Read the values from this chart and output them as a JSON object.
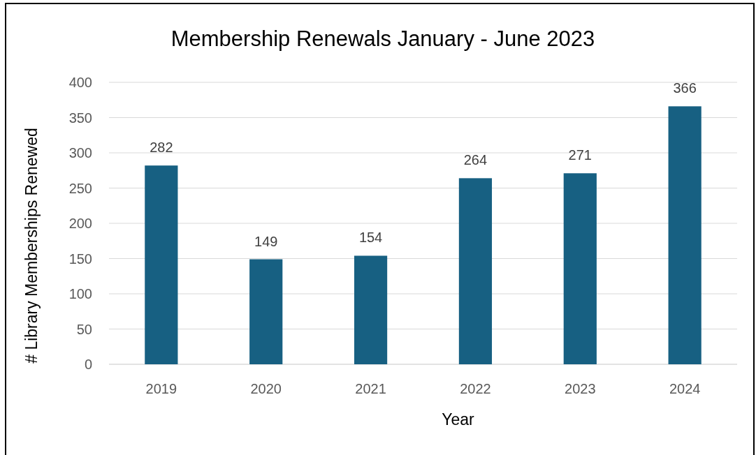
{
  "chart_data": {
    "type": "bar",
    "title": "Membership Renewals January - June 2023",
    "xlabel": "Year",
    "ylabel": "# Library Memberships Renewed",
    "categories": [
      "2019",
      "2020",
      "2021",
      "2022",
      "2023",
      "2024"
    ],
    "values": [
      282,
      149,
      154,
      264,
      271,
      366
    ],
    "color": "#176082",
    "ylim": [
      0,
      400
    ],
    "yticks": [
      0,
      50,
      100,
      150,
      200,
      250,
      300,
      350,
      400
    ],
    "grid": "y",
    "data_labels": true
  }
}
